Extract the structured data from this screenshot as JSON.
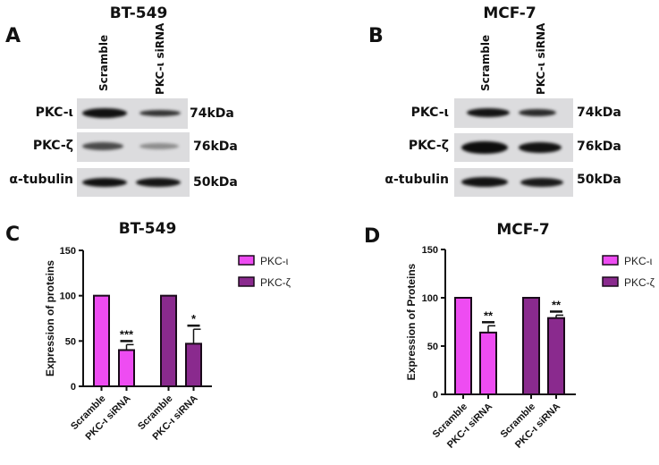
{
  "panels": {
    "A": {
      "letter": "A",
      "title": "BT-549",
      "lanes": [
        "Scramble",
        "PKC-ι siRNA"
      ],
      "rows": [
        {
          "label": "PKC-ι",
          "kda": "74kDa"
        },
        {
          "label": "PKC-ζ",
          "kda": "76kDa"
        },
        {
          "label": "α-tubulin",
          "kda": "50kDa"
        }
      ]
    },
    "B": {
      "letter": "B",
      "title": "MCF-7",
      "lanes": [
        "Scramble",
        "PKC-ι siRNA"
      ],
      "rows": [
        {
          "label": "PKC-ι",
          "kda": "74kDa"
        },
        {
          "label": "PKC-ζ",
          "kda": "76kDa"
        },
        {
          "label": "α-tubulin",
          "kda": "50kDa"
        }
      ]
    },
    "C": {
      "letter": "C"
    },
    "D": {
      "letter": "D"
    }
  },
  "colors": {
    "pkc_iota": "#ee4cf2",
    "pkc_zeta": "#8a2a8e",
    "axis": "#111111",
    "blot_bg": "#dcdcde"
  },
  "chart_data": [
    {
      "type": "bar",
      "title": "BT-549",
      "ylabel": "Expression of proteins",
      "xlabel": "",
      "ylim": [
        0,
        150
      ],
      "yticks": [
        0,
        50,
        100,
        150
      ],
      "categories": [
        "Scramble",
        "PKC-ι siRNA",
        "Scramble",
        "PKC-ι siRNA"
      ],
      "series": [
        {
          "name": "PKC-ι",
          "values": [
            100,
            40
          ],
          "errors": [
            0,
            6
          ],
          "significance": [
            "",
            "***"
          ]
        },
        {
          "name": "PKC-ζ",
          "values": [
            100,
            47
          ],
          "errors": [
            0,
            16
          ],
          "significance": [
            "",
            "*"
          ]
        }
      ],
      "legend": [
        "PKC-ι",
        "PKC-ζ"
      ],
      "legend_position": "right",
      "grid": false
    },
    {
      "type": "bar",
      "title": "MCF-7",
      "ylabel": "Expression of Proteins",
      "xlabel": "",
      "ylim": [
        0,
        150
      ],
      "yticks": [
        0,
        50,
        100,
        150
      ],
      "categories": [
        "Scramble",
        "PKC-ι siRNA",
        "Scramble",
        "PKC-ι siRNA"
      ],
      "series": [
        {
          "name": "PKC-ι",
          "values": [
            100,
            64
          ],
          "errors": [
            0,
            7
          ],
          "significance": [
            "",
            "**"
          ]
        },
        {
          "name": "PKC-ζ",
          "values": [
            100,
            79
          ],
          "errors": [
            0,
            3
          ],
          "significance": [
            "",
            "**"
          ]
        }
      ],
      "legend": [
        "PKC-ι",
        "PKC-ζ"
      ],
      "legend_position": "right",
      "grid": false
    }
  ]
}
